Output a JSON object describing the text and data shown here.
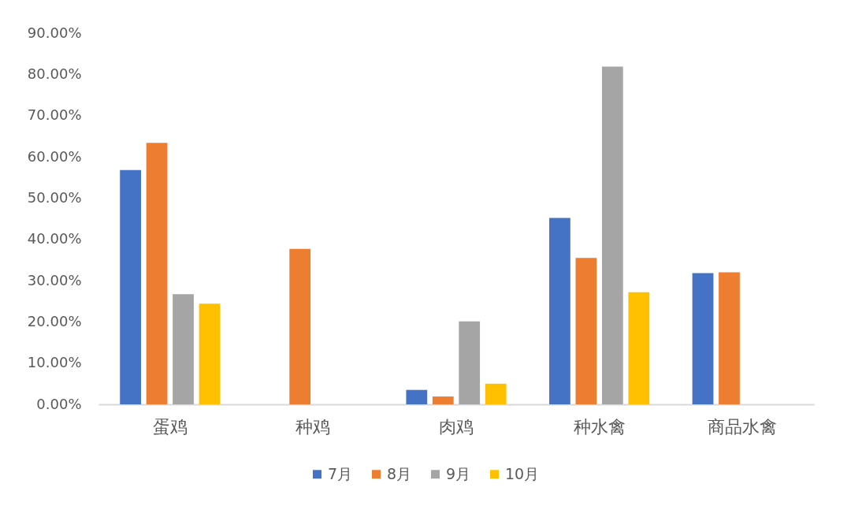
{
  "chart_data": {
    "type": "bar",
    "categories": [
      "蛋鸡",
      "种鸡",
      "肉鸡",
      "种水禽",
      "商品水禽"
    ],
    "series": [
      {
        "name": "7月",
        "color": "#4472c4",
        "values": [
          56.8,
          null,
          3.5,
          45.2,
          31.8
        ]
      },
      {
        "name": "8月",
        "color": "#ed7d31",
        "values": [
          63.4,
          37.7,
          1.9,
          35.5,
          32.0
        ]
      },
      {
        "name": "9月",
        "color": "#a5a5a5",
        "values": [
          26.7,
          null,
          20.1,
          81.9,
          null
        ]
      },
      {
        "name": "10月",
        "color": "#ffc000",
        "values": [
          24.4,
          null,
          5.0,
          27.2,
          null
        ]
      }
    ],
    "ylim": [
      0,
      90
    ],
    "yticks": [
      {
        "value": 0,
        "label": "0.00%"
      },
      {
        "value": 10,
        "label": "10.00%"
      },
      {
        "value": 20,
        "label": "20.00%"
      },
      {
        "value": 30,
        "label": "30.00%"
      },
      {
        "value": 40,
        "label": "40.00%"
      },
      {
        "value": 50,
        "label": "50.00%"
      },
      {
        "value": 60,
        "label": "60.00%"
      },
      {
        "value": 70,
        "label": "70.00%"
      },
      {
        "value": 80,
        "label": "80.00%"
      },
      {
        "value": 90,
        "label": "90.00%"
      }
    ],
    "grid": false,
    "legend": "bottom"
  }
}
